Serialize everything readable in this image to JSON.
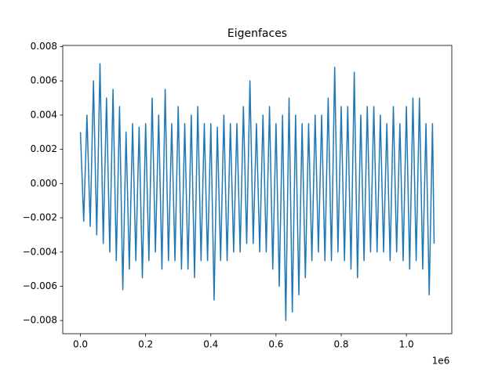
{
  "chart_data": {
    "type": "line",
    "title": "Eigenfaces",
    "x_offset_label": "1e6",
    "x": [
      0,
      10000,
      20000,
      30000,
      40000,
      50000,
      60000,
      70000,
      80000,
      90000,
      100000,
      110000,
      120000,
      130000,
      140000,
      150000,
      160000,
      170000,
      180000,
      190000,
      200000,
      210000,
      220000,
      230000,
      240000,
      250000,
      260000,
      270000,
      280000,
      290000,
      300000,
      310000,
      320000,
      330000,
      340000,
      350000,
      360000,
      370000,
      380000,
      390000,
      400000,
      410000,
      420000,
      430000,
      440000,
      450000,
      460000,
      470000,
      480000,
      490000,
      500000,
      510000,
      520000,
      530000,
      540000,
      550000,
      560000,
      570000,
      580000,
      590000,
      600000,
      610000,
      620000,
      630000,
      640000,
      650000,
      660000,
      670000,
      680000,
      690000,
      700000,
      710000,
      720000,
      730000,
      740000,
      750000,
      760000,
      770000,
      780000,
      790000,
      800000,
      810000,
      820000,
      830000,
      840000,
      850000,
      860000,
      870000,
      880000,
      890000,
      900000,
      910000,
      920000,
      930000,
      940000,
      950000,
      960000,
      970000,
      980000,
      990000,
      1000000,
      1010000,
      1020000,
      1030000,
      1040000,
      1050000,
      1060000,
      1070000,
      1080000,
      1085000
    ],
    "series": [
      {
        "color": "#1f77b4",
        "values": [
          0.003,
          -0.0022,
          0.004,
          -0.0025,
          0.006,
          -0.003,
          0.007,
          -0.0035,
          0.005,
          -0.004,
          0.0055,
          -0.0045,
          0.0045,
          -0.0062,
          0.003,
          -0.005,
          0.0035,
          -0.0045,
          0.0033,
          -0.0055,
          0.0035,
          -0.0045,
          0.005,
          -0.004,
          0.004,
          -0.005,
          0.0055,
          -0.0045,
          0.0035,
          -0.0045,
          0.0045,
          -0.005,
          0.0035,
          -0.005,
          0.004,
          -0.0055,
          0.0045,
          -0.0045,
          0.0035,
          -0.0045,
          0.0035,
          -0.0068,
          0.0033,
          -0.0045,
          0.004,
          -0.0045,
          0.0035,
          -0.004,
          0.0035,
          -0.004,
          0.0045,
          -0.0035,
          0.006,
          -0.0035,
          0.0035,
          -0.004,
          0.004,
          -0.004,
          0.0045,
          -0.005,
          0.0035,
          -0.006,
          0.004,
          -0.008,
          0.005,
          -0.0075,
          0.004,
          -0.0065,
          0.0035,
          -0.0055,
          0.0035,
          -0.0045,
          0.004,
          -0.004,
          0.004,
          -0.0045,
          0.005,
          -0.0045,
          0.0068,
          -0.004,
          0.0045,
          -0.0045,
          0.0045,
          -0.005,
          0.0065,
          -0.0055,
          0.004,
          -0.0045,
          0.0045,
          -0.004,
          0.0045,
          -0.004,
          0.004,
          -0.004,
          0.0035,
          -0.0045,
          0.0045,
          -0.004,
          0.0035,
          -0.0045,
          0.0045,
          -0.005,
          0.005,
          -0.0045,
          0.005,
          -0.005,
          0.0035,
          -0.0065,
          0.0035,
          -0.0035
        ]
      }
    ],
    "xlim": [
      -54250,
      1139250
    ],
    "xticks": [
      {
        "value": 0,
        "label": "0.0"
      },
      {
        "value": 200000,
        "label": "0.2"
      },
      {
        "value": 400000,
        "label": "0.4"
      },
      {
        "value": 600000,
        "label": "0.6"
      },
      {
        "value": 800000,
        "label": "0.8"
      },
      {
        "value": 1000000,
        "label": "1.0"
      }
    ],
    "ylim": [
      -0.00877,
      0.00807
    ],
    "yticks": [
      {
        "value": -0.008,
        "label": "−0.008"
      },
      {
        "value": -0.006,
        "label": "−0.006"
      },
      {
        "value": -0.004,
        "label": "−0.004"
      },
      {
        "value": -0.002,
        "label": "−0.002"
      },
      {
        "value": 0,
        "label": "0.000"
      },
      0.002,
      0.004,
      0.006,
      0.008
    ],
    "grid": false
  }
}
